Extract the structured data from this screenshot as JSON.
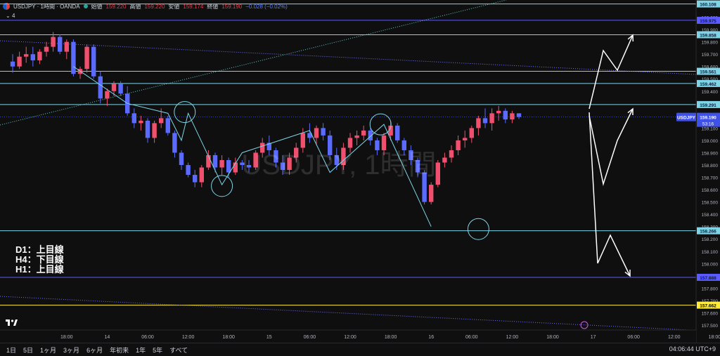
{
  "header": {
    "symbol": "USDJPY · 1時間 · OANDA",
    "open_label": "始値",
    "open_value": "159.220",
    "high_label": "高値",
    "high_value": "159.220",
    "low_label": "安値",
    "low_value": "159.174",
    "close_label": "終値",
    "close_value": "159.190",
    "change": "−0.028 (−0.02%)",
    "indicator_count": "4"
  },
  "watermark": "USDJPY, 1時間",
  "notes": [
    "D1：上目線",
    "H4：下目線",
    "H1：上目線"
  ],
  "current_price": {
    "value": "159.190",
    "countdown": "53:16",
    "symbol": "USDJPY"
  },
  "bottom_bar": {
    "periods": [
      "1日",
      "5日",
      "1ヶ月",
      "3ヶ月",
      "6ヶ月",
      "年初来",
      "1年",
      "5年",
      "すべて"
    ],
    "clock": "04:06:44 UTC+9"
  },
  "colors": {
    "bull": "#f0506e",
    "bear": "#5b6bff",
    "horizontal": "#7fd4e6",
    "support": "#5b5bff",
    "yellow": "#ffeb3b",
    "diag": "#6f6fff",
    "arrow": "#ffffff"
  },
  "chart_data": {
    "type": "candlestick",
    "ylim": [
      157.46,
      160.14
    ],
    "y_ticks": [
      "160.000",
      "159.900",
      "159.800",
      "159.700",
      "159.600",
      "159.500",
      "159.400",
      "159.300",
      "159.100",
      "159.000",
      "158.900",
      "158.800",
      "158.700",
      "158.600",
      "158.500",
      "158.400",
      "158.300",
      "158.200",
      "158.100",
      "158.000",
      "157.800",
      "157.700",
      "157.600",
      "157.500"
    ],
    "x_ticks": [
      {
        "i": 8,
        "label": "18:00"
      },
      {
        "i": 14,
        "label": "14"
      },
      {
        "i": 20,
        "label": "06:00"
      },
      {
        "i": 26,
        "label": "12:00"
      },
      {
        "i": 32,
        "label": "18:00"
      },
      {
        "i": 38,
        "label": "15"
      },
      {
        "i": 44,
        "label": "06:00"
      },
      {
        "i": 50,
        "label": "12:00"
      },
      {
        "i": 56,
        "label": "18:00"
      },
      {
        "i": 62,
        "label": "16"
      },
      {
        "i": 68,
        "label": "06:00"
      },
      {
        "i": 74,
        "label": "12:00"
      },
      {
        "i": 80,
        "label": "18:00"
      },
      {
        "i": 86,
        "label": "17"
      },
      {
        "i": 92,
        "label": "06:00"
      },
      {
        "i": 98,
        "label": "12:00"
      },
      {
        "i": 104,
        "label": "18:00"
      }
    ],
    "price_levels": [
      {
        "value": 160.108,
        "label": "160.108",
        "color": "#7fd4e6"
      },
      {
        "value": 159.975,
        "label": "159.975",
        "color": "#5b5bff"
      },
      {
        "value": 159.858,
        "label": "159.858",
        "color": "#7fd4e6"
      },
      {
        "value": 159.561,
        "label": "159.561",
        "color": "#7fd4e6"
      },
      {
        "value": 159.462,
        "label": "159.462",
        "color": "#7fd4e6"
      },
      {
        "value": 159.291,
        "label": "159.291",
        "color": "#7fd4e6"
      },
      {
        "value": 158.266,
        "label": "158.266",
        "color": "#7fd4e6"
      },
      {
        "value": 157.888,
        "label": "157.888",
        "color": "#5b5bff"
      },
      {
        "value": 157.662,
        "label": "157.662",
        "color": "#ffeb3b"
      }
    ],
    "candles": [
      [
        159.64,
        159.7,
        159.55,
        159.6
      ],
      [
        159.6,
        159.72,
        159.58,
        159.68
      ],
      [
        159.68,
        159.76,
        159.63,
        159.7
      ],
      [
        159.7,
        159.76,
        159.6,
        159.65
      ],
      [
        159.65,
        159.74,
        159.62,
        159.72
      ],
      [
        159.72,
        159.8,
        159.68,
        159.76
      ],
      [
        159.76,
        159.88,
        159.72,
        159.84
      ],
      [
        159.84,
        159.86,
        159.7,
        159.72
      ],
      [
        159.72,
        159.82,
        159.66,
        159.8
      ],
      [
        159.8,
        159.82,
        159.52,
        159.54
      ],
      [
        159.54,
        159.6,
        159.5,
        159.58
      ],
      [
        159.58,
        159.78,
        159.55,
        159.76
      ],
      [
        159.76,
        159.78,
        159.5,
        159.52
      ],
      [
        159.52,
        159.56,
        159.3,
        159.34
      ],
      [
        159.34,
        159.42,
        159.28,
        159.4
      ],
      [
        159.4,
        159.48,
        159.36,
        159.46
      ],
      [
        159.46,
        159.48,
        159.36,
        159.38
      ],
      [
        159.38,
        159.44,
        159.2,
        159.22
      ],
      [
        159.22,
        159.26,
        159.1,
        159.14
      ],
      [
        159.14,
        159.2,
        159.08,
        159.16
      ],
      [
        159.16,
        159.18,
        158.98,
        159.02
      ],
      [
        159.02,
        159.16,
        158.98,
        159.14
      ],
      [
        159.14,
        159.26,
        159.1,
        159.18
      ],
      [
        159.18,
        159.2,
        159.04,
        159.06
      ],
      [
        159.06,
        159.08,
        158.86,
        158.9
      ],
      [
        158.9,
        158.92,
        158.76,
        158.8
      ],
      [
        158.8,
        158.82,
        158.7,
        158.72
      ],
      [
        158.72,
        158.76,
        158.62,
        158.66
      ],
      [
        158.66,
        158.8,
        158.62,
        158.78
      ],
      [
        158.78,
        158.92,
        158.76,
        158.88
      ],
      [
        158.88,
        158.9,
        158.74,
        158.78
      ],
      [
        158.78,
        158.88,
        158.72,
        158.84
      ],
      [
        158.84,
        158.86,
        158.7,
        158.74
      ],
      [
        158.74,
        158.86,
        158.72,
        158.82
      ],
      [
        158.82,
        158.84,
        158.76,
        158.8
      ],
      [
        158.8,
        158.84,
        158.74,
        158.78
      ],
      [
        158.78,
        158.92,
        158.76,
        158.9
      ],
      [
        158.9,
        159.02,
        158.86,
        158.98
      ],
      [
        158.98,
        159.04,
        158.88,
        158.92
      ],
      [
        158.92,
        158.94,
        158.78,
        158.82
      ],
      [
        158.82,
        158.88,
        158.72,
        158.76
      ],
      [
        158.76,
        158.9,
        158.72,
        158.86
      ],
      [
        158.86,
        158.98,
        158.82,
        158.94
      ],
      [
        158.94,
        159.1,
        158.9,
        159.06
      ],
      [
        159.06,
        159.14,
        158.98,
        159.02
      ],
      [
        159.02,
        159.12,
        158.96,
        159.1
      ],
      [
        159.1,
        159.14,
        159.0,
        159.04
      ],
      [
        159.04,
        159.08,
        158.84,
        158.88
      ],
      [
        158.88,
        158.94,
        158.76,
        158.8
      ],
      [
        158.8,
        158.98,
        158.76,
        158.94
      ],
      [
        158.94,
        159.06,
        158.9,
        159.02
      ],
      [
        159.02,
        159.08,
        158.96,
        159.04
      ],
      [
        159.04,
        159.12,
        159.0,
        159.08
      ],
      [
        159.08,
        159.1,
        158.96,
        159.0
      ],
      [
        159.0,
        159.02,
        158.88,
        158.92
      ],
      [
        158.92,
        159.06,
        158.88,
        159.04
      ],
      [
        159.04,
        159.16,
        159.0,
        159.12
      ],
      [
        159.12,
        159.14,
        158.98,
        159.0
      ],
      [
        159.0,
        159.02,
        158.88,
        158.92
      ],
      [
        158.92,
        158.96,
        158.8,
        158.84
      ],
      [
        158.84,
        158.86,
        158.7,
        158.74
      ],
      [
        158.74,
        158.76,
        158.48,
        158.5
      ],
      [
        158.5,
        158.66,
        158.48,
        158.64
      ],
      [
        158.64,
        158.84,
        158.62,
        158.82
      ],
      [
        158.82,
        158.9,
        158.78,
        158.86
      ],
      [
        158.86,
        158.96,
        158.82,
        158.92
      ],
      [
        158.92,
        159.04,
        158.88,
        159.0
      ],
      [
        159.0,
        159.08,
        158.94,
        159.02
      ],
      [
        159.02,
        159.12,
        158.98,
        159.1
      ],
      [
        159.1,
        159.2,
        159.04,
        159.18
      ],
      [
        159.18,
        159.26,
        159.1,
        159.14
      ],
      [
        159.14,
        159.26,
        159.08,
        159.22
      ],
      [
        159.22,
        159.28,
        159.16,
        159.24
      ],
      [
        159.24,
        159.26,
        159.14,
        159.17
      ],
      [
        159.17,
        159.24,
        159.14,
        159.22
      ],
      [
        159.22,
        159.22,
        159.174,
        159.19
      ]
    ],
    "current_price": 159.19
  }
}
